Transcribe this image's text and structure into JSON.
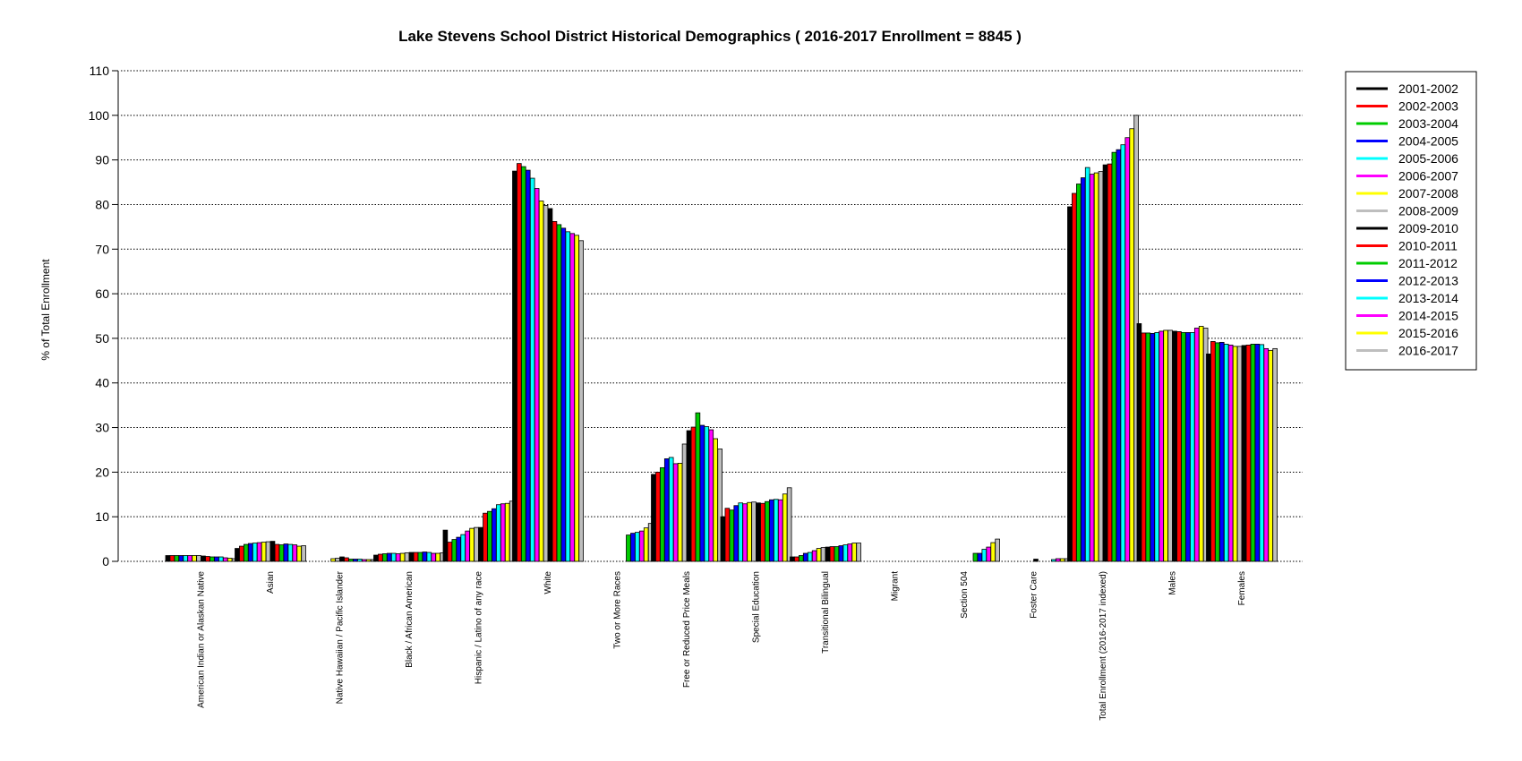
{
  "chart_data": {
    "type": "bar",
    "title": "Lake Stevens School District Historical Demographics  ( 2016-2017 Enrollment =  8845 )",
    "xlabel": "",
    "ylabel": "% of Total Enrollment",
    "ylim": [
      0,
      110
    ],
    "yticks": [
      0,
      10,
      20,
      30,
      40,
      50,
      60,
      70,
      80,
      90,
      100,
      110
    ],
    "grid": "horizontal dotted",
    "legend_position": "top-right",
    "categories": [
      "American Indian or Alaskan Native",
      "Asian",
      "Native Hawaiian / Pacific Islander",
      "Black / African American",
      "Hispanic / Latino of any race",
      "White",
      "Two or More Races",
      "Free or Reduced Price Meals",
      "Special Education",
      "Transitional Bilingual",
      "Migrant",
      "Section 504",
      "Foster Care",
      "Total Enrollment (2016-2017 indexed)",
      "Males",
      "Females"
    ],
    "series": [
      {
        "name": "2001-2002",
        "color": "#000000",
        "values": [
          1.3,
          2.9,
          0,
          1.4,
          7.0,
          87.5,
          0,
          19.5,
          10.0,
          1.0,
          0,
          0,
          0,
          79.5,
          53.3,
          46.5
        ]
      },
      {
        "name": "2002-2003",
        "color": "#ff0000",
        "values": [
          1.3,
          3.4,
          0,
          1.6,
          4.3,
          89.2,
          0,
          20.0,
          11.9,
          1.0,
          0,
          0,
          0,
          82.5,
          51.2,
          49.3
        ]
      },
      {
        "name": "2003-2004",
        "color": "#00cc00",
        "values": [
          1.3,
          3.8,
          0,
          1.7,
          4.9,
          88.5,
          0,
          21.0,
          11.5,
          1.3,
          0,
          0,
          0,
          84.6,
          51.2,
          49.0
        ]
      },
      {
        "name": "2004-2005",
        "color": "#0000ff",
        "values": [
          1.3,
          4.0,
          0,
          1.8,
          5.4,
          87.7,
          0,
          23.0,
          12.5,
          1.8,
          0,
          0,
          0,
          86.0,
          51.1,
          49.1
        ]
      },
      {
        "name": "2005-2006",
        "color": "#00ffff",
        "values": [
          1.3,
          4.1,
          0,
          1.8,
          6.0,
          85.9,
          0,
          23.3,
          13.1,
          2.0,
          0,
          0,
          0,
          88.3,
          51.3,
          48.7
        ]
      },
      {
        "name": "2006-2007",
        "color": "#ff00ff",
        "values": [
          1.3,
          4.2,
          0,
          1.7,
          6.8,
          83.6,
          0,
          21.9,
          12.9,
          2.4,
          0,
          0,
          0,
          86.8,
          51.6,
          48.5
        ]
      },
      {
        "name": "2007-2008",
        "color": "#ffff00",
        "values": [
          1.3,
          4.3,
          0.6,
          1.8,
          7.4,
          80.8,
          0,
          22.0,
          13.2,
          2.9,
          0,
          0,
          0,
          87.1,
          51.8,
          48.2
        ]
      },
      {
        "name": "2008-2009",
        "color": "#bebebe",
        "values": [
          1.3,
          4.4,
          0.7,
          1.9,
          7.6,
          79.8,
          0,
          26.3,
          13.3,
          3.1,
          0,
          0,
          0,
          87.4,
          51.8,
          48.2
        ]
      },
      {
        "name": "2009-2010",
        "color": "#000000",
        "values": [
          1.2,
          4.5,
          1.0,
          2.0,
          7.6,
          79.1,
          0,
          29.3,
          13.1,
          3.2,
          0,
          0,
          0.5,
          88.9,
          51.6,
          48.4
        ]
      },
      {
        "name": "2010-2011",
        "color": "#ff0000",
        "values": [
          1.1,
          3.8,
          0.8,
          2.0,
          10.8,
          76.2,
          0,
          30.1,
          13.0,
          3.3,
          0,
          0,
          0,
          89.1,
          51.5,
          48.5
        ]
      },
      {
        "name": "2011-2012",
        "color": "#00cc00",
        "values": [
          1.0,
          3.7,
          0.5,
          2.0,
          11.2,
          75.5,
          5.9,
          33.3,
          13.4,
          3.3,
          0,
          1.8,
          0,
          91.7,
          51.3,
          48.7
        ]
      },
      {
        "name": "2012-2013",
        "color": "#0000ff",
        "values": [
          1.0,
          3.9,
          0.5,
          2.1,
          11.8,
          74.7,
          6.3,
          30.5,
          13.8,
          3.5,
          0,
          1.8,
          0,
          92.3,
          51.3,
          48.7
        ]
      },
      {
        "name": "2013-2014",
        "color": "#00ffff",
        "values": [
          1.0,
          3.8,
          0.5,
          2.0,
          12.7,
          73.9,
          6.5,
          30.2,
          13.9,
          3.7,
          0,
          2.7,
          0.4,
          93.4,
          51.3,
          48.6
        ]
      },
      {
        "name": "2014-2015",
        "color": "#ff00ff",
        "values": [
          0.8,
          3.7,
          0.4,
          1.8,
          12.9,
          73.5,
          6.8,
          29.5,
          13.8,
          3.9,
          0,
          3.2,
          0.6,
          95.0,
          52.3,
          47.7
        ]
      },
      {
        "name": "2015-2016",
        "color": "#ffff00",
        "values": [
          0.7,
          3.4,
          0.4,
          1.8,
          13.0,
          73.1,
          7.5,
          27.5,
          15.1,
          4.1,
          0,
          4.2,
          0.6,
          97.0,
          52.7,
          47.3
        ]
      },
      {
        "name": "2016-2017",
        "color": "#bebebe",
        "values": [
          0.6,
          3.5,
          0.4,
          1.9,
          13.5,
          71.9,
          8.5,
          25.2,
          16.5,
          4.1,
          0,
          5.0,
          0.6,
          100.0,
          52.3,
          47.7
        ]
      }
    ]
  }
}
